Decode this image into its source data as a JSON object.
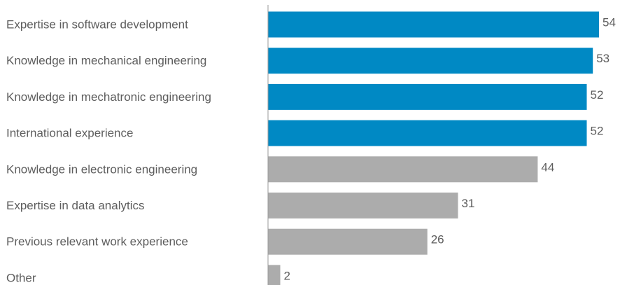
{
  "chart_data": {
    "type": "bar",
    "orientation": "horizontal",
    "categories": [
      "Expertise in software development",
      "Knowledge in mechanical engineering",
      "Knowledge in mechatronic engineering",
      "International experience",
      "Knowledge in electronic engineering",
      "Expertise in data analytics",
      "Previous relevant work experience",
      "Other"
    ],
    "values": [
      54,
      53,
      52,
      52,
      44,
      31,
      26,
      2
    ],
    "highlighted": [
      true,
      true,
      true,
      true,
      false,
      false,
      false,
      false
    ],
    "colors": {
      "highlight": "#0089c4",
      "default": "#acacac",
      "axis": "#9a9a9a",
      "text": "#5d5d5d"
    },
    "title": "",
    "xlabel": "",
    "ylabel": "",
    "xlim": [
      0,
      54
    ],
    "grid": false,
    "legend": "none"
  }
}
